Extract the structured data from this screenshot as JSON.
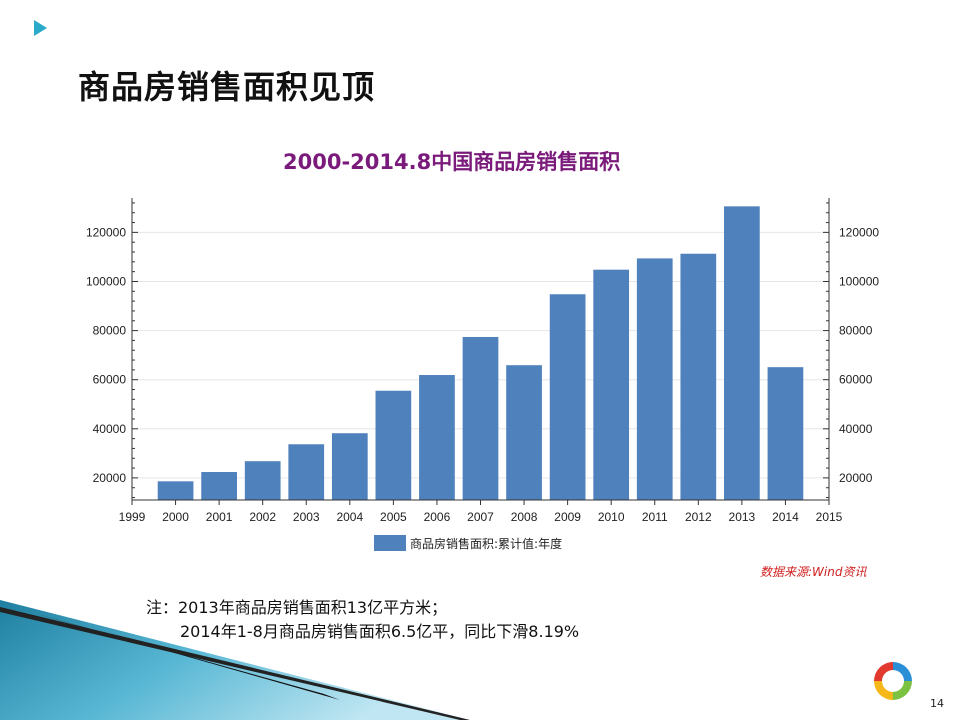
{
  "slide": {
    "title": "商品房销售面积见顶",
    "page_number": "14"
  },
  "source": "数据来源:Wind资讯",
  "notes": {
    "line1": "注：2013年商品房销售面积13亿平方米；",
    "line2": "2014年1-8月商品房销售面积6.5亿平，同比下滑8.19%"
  },
  "colors": {
    "bar": "#4f81bd",
    "chart_title": "#7a1a7a",
    "bullet": "#2aa9c8",
    "source": "#d02020"
  },
  "chart_data": {
    "type": "bar",
    "title": "2000-2014.8中国商品房销售面积",
    "categories": [
      "2000",
      "2001",
      "2002",
      "2003",
      "2004",
      "2005",
      "2006",
      "2007",
      "2008",
      "2009",
      "2010",
      "2011",
      "2012",
      "2013",
      "2014"
    ],
    "series": [
      {
        "name": "商品房销售面积:累计值:年度",
        "values": [
          18600,
          22400,
          26800,
          33700,
          38200,
          55500,
          61900,
          77400,
          65900,
          94800,
          104800,
          109400,
          111300,
          130600,
          65100
        ]
      }
    ],
    "x_axis_ticks": [
      "1999",
      "2000",
      "2001",
      "2002",
      "2003",
      "2004",
      "2005",
      "2006",
      "2007",
      "2008",
      "2009",
      "2010",
      "2011",
      "2012",
      "2013",
      "2014",
      "2015"
    ],
    "y_ticks": [
      "20000",
      "40000",
      "60000",
      "80000",
      "100000",
      "120000"
    ],
    "ylim": [
      11000,
      134000
    ],
    "legend_position": "bottom",
    "grid": true
  }
}
